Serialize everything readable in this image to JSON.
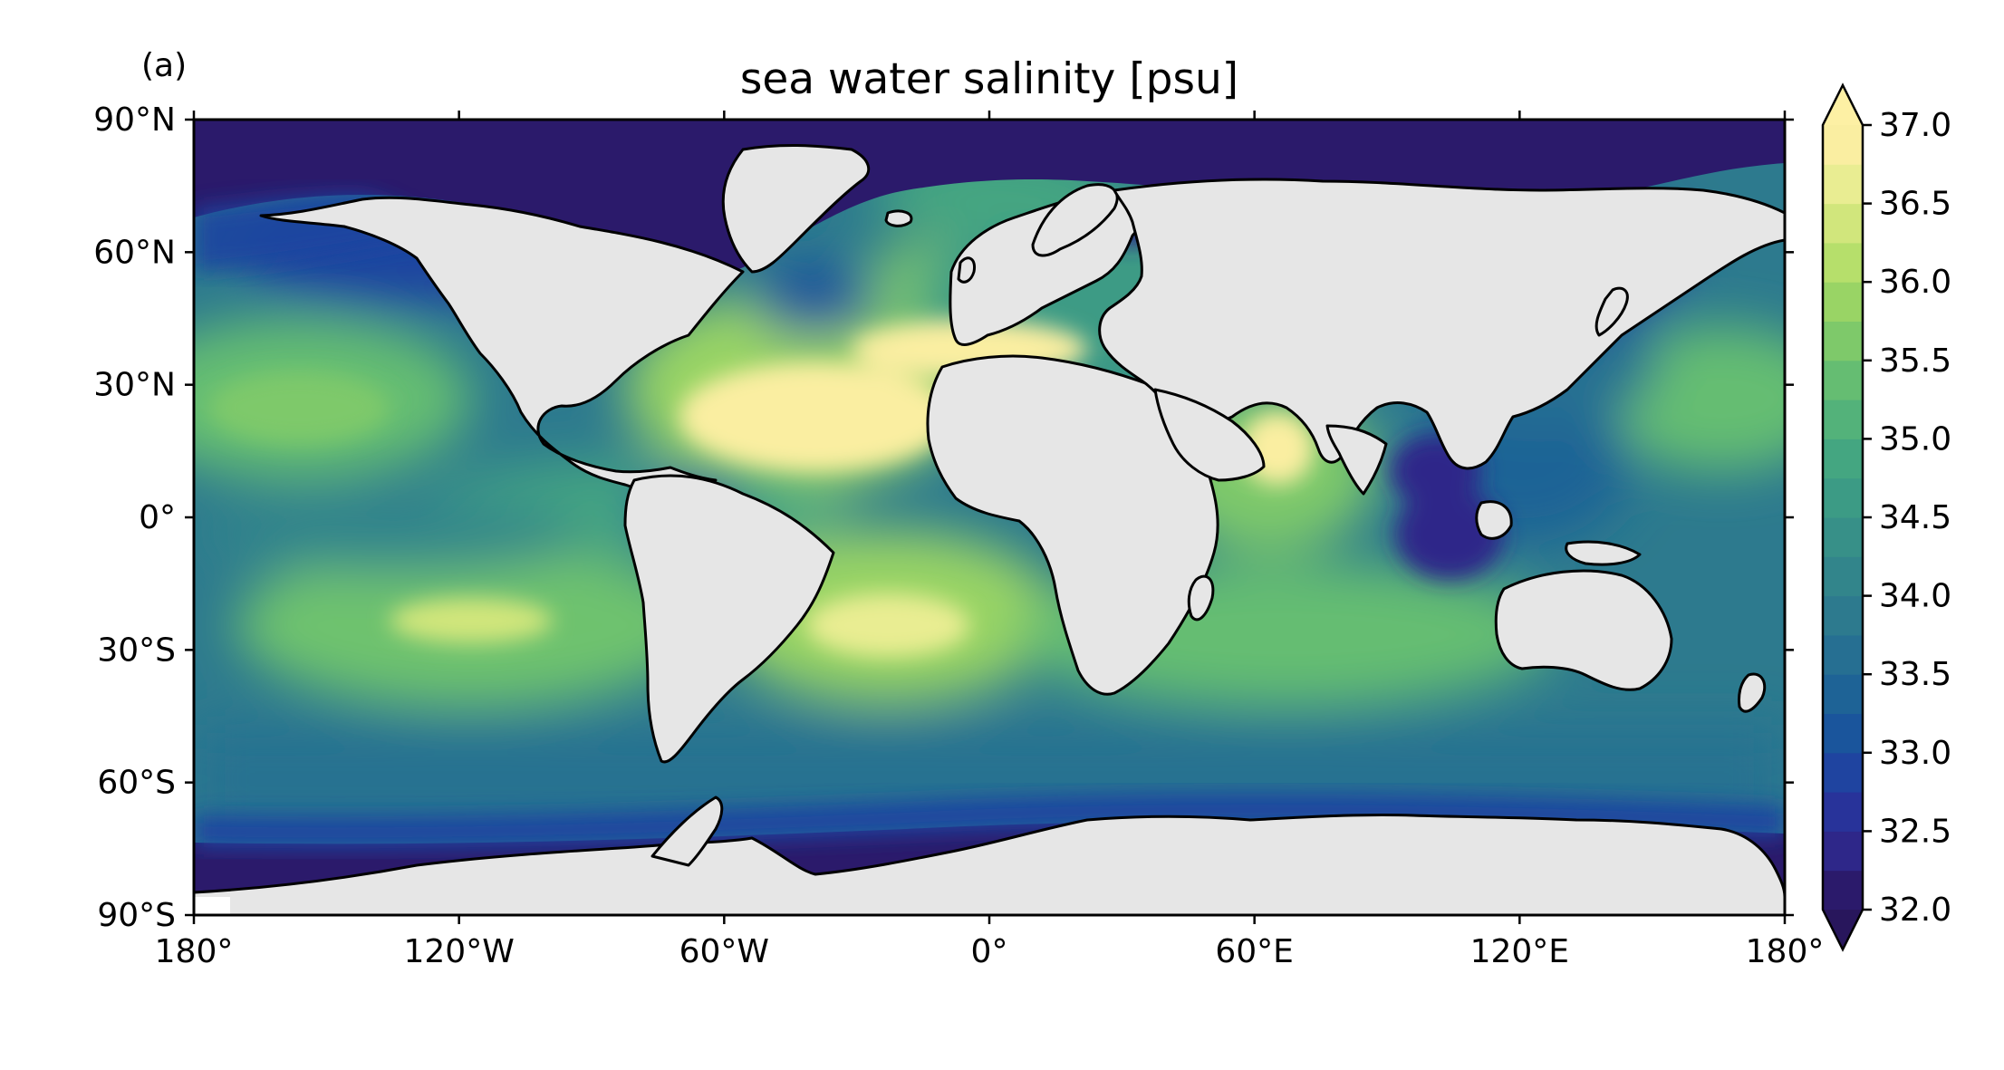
{
  "panel_label": "(a)",
  "title": "sea water salinity [psu]",
  "axes": {
    "lon_ticks": [
      {
        "value": -180,
        "label": "180°"
      },
      {
        "value": -120,
        "label": "120°W"
      },
      {
        "value": -60,
        "label": "60°W"
      },
      {
        "value": 0,
        "label": "0°"
      },
      {
        "value": 60,
        "label": "60°E"
      },
      {
        "value": 120,
        "label": "120°E"
      },
      {
        "value": 180,
        "label": "180°"
      }
    ],
    "lat_ticks": [
      {
        "value": 90,
        "label": "90°N"
      },
      {
        "value": 60,
        "label": "60°N"
      },
      {
        "value": 30,
        "label": "30°N"
      },
      {
        "value": 0,
        "label": "0°"
      },
      {
        "value": -30,
        "label": "30°S"
      },
      {
        "value": -60,
        "label": "60°S"
      },
      {
        "value": -90,
        "label": "90°S"
      }
    ],
    "lon_range": [
      -180,
      180
    ],
    "lat_range": [
      -90,
      90
    ]
  },
  "colorbar": {
    "min": 32.0,
    "max": 37.0,
    "extend": "both",
    "ticks": [
      {
        "value": 37.0,
        "label": "37.0"
      },
      {
        "value": 36.5,
        "label": "36.5"
      },
      {
        "value": 36.0,
        "label": "36.0"
      },
      {
        "value": 35.5,
        "label": "35.5"
      },
      {
        "value": 35.0,
        "label": "35.0"
      },
      {
        "value": 34.5,
        "label": "34.5"
      },
      {
        "value": 34.0,
        "label": "34.0"
      },
      {
        "value": 33.5,
        "label": "33.5"
      },
      {
        "value": 33.0,
        "label": "33.0"
      },
      {
        "value": 32.5,
        "label": "32.5"
      },
      {
        "value": 32.0,
        "label": "32.0"
      }
    ],
    "colors": [
      "#2b1a6b",
      "#2e2789",
      "#28339a",
      "#1f44a0",
      "#1a559c",
      "#1e6396",
      "#266f92",
      "#2d7a8e",
      "#32858b",
      "#379088",
      "#3c9b85",
      "#44a681",
      "#53b27a",
      "#65bd72",
      "#7ec96a",
      "#99d465",
      "#b6df6b",
      "#d1e67c",
      "#e9ed92",
      "#faeea1"
    ],
    "under_color": "#28165c",
    "over_color": "#fdf0a4"
  },
  "colors": {
    "land": "#e6e6e6",
    "coast": "#000000",
    "ocean_base": "#2d7a8e"
  }
}
